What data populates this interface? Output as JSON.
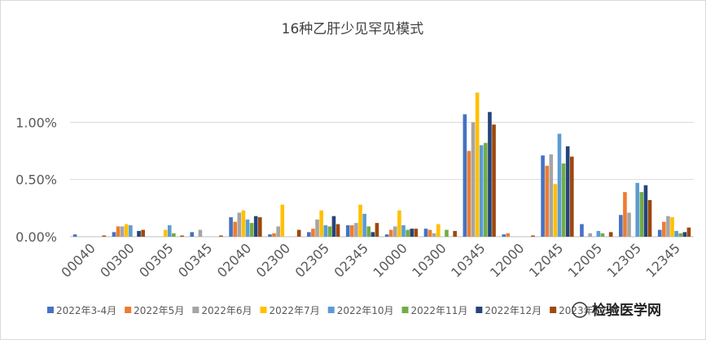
{
  "chart_data": {
    "type": "bar",
    "title": "16种乙肝少见罕见模式",
    "xlabel": "",
    "ylabel": "",
    "ylim": [
      0,
      1.5
    ],
    "y_ticks": [
      {
        "value": 0,
        "label": "0.00%"
      },
      {
        "value": 0.5,
        "label": "0.50%"
      },
      {
        "value": 1.0,
        "label": "1.00%"
      }
    ],
    "grid": true,
    "legend_position": "bottom",
    "categories": [
      "00040",
      "00300",
      "00305",
      "00345",
      "02040",
      "02300",
      "02305",
      "02345",
      "10000",
      "10300",
      "10345",
      "12000",
      "12045",
      "12005",
      "12305",
      "12345"
    ],
    "series": [
      {
        "name": "2022年3-4月",
        "color": "#4472C4",
        "values": [
          0.02,
          0.04,
          0.0,
          0.04,
          0.17,
          0.02,
          0.04,
          0.1,
          0.02,
          0.07,
          1.07,
          0.02,
          0.71,
          0.11,
          0.19,
          0.06
        ]
      },
      {
        "name": "2022年5月",
        "color": "#ED7D31",
        "values": [
          0.0,
          0.09,
          0.0,
          0.0,
          0.13,
          0.03,
          0.07,
          0.1,
          0.06,
          0.06,
          0.75,
          0.03,
          0.62,
          0.0,
          0.39,
          0.13
        ]
      },
      {
        "name": "2022年6月",
        "color": "#A5A5A5",
        "values": [
          0.0,
          0.09,
          0.0,
          0.06,
          0.21,
          0.09,
          0.15,
          0.12,
          0.09,
          0.03,
          1.0,
          0.0,
          0.72,
          0.03,
          0.21,
          0.18
        ]
      },
      {
        "name": "2022年7月",
        "color": "#FFC000",
        "values": [
          0.0,
          0.11,
          0.06,
          0.0,
          0.23,
          0.28,
          0.23,
          0.28,
          0.23,
          0.11,
          1.26,
          0.0,
          0.46,
          0.0,
          0.0,
          0.17
        ]
      },
      {
        "name": "2022年10月",
        "color": "#5B9BD5",
        "values": [
          0.0,
          0.1,
          0.1,
          0.0,
          0.15,
          0.0,
          0.1,
          0.2,
          0.1,
          0.0,
          0.8,
          0.0,
          0.9,
          0.05,
          0.47,
          0.05
        ]
      },
      {
        "name": "2022年11月",
        "color": "#70AD47",
        "values": [
          0.0,
          0.0,
          0.03,
          0.0,
          0.12,
          0.0,
          0.09,
          0.09,
          0.06,
          0.06,
          0.82,
          0.0,
          0.64,
          0.03,
          0.39,
          0.03
        ]
      },
      {
        "name": "2022年12月",
        "color": "#264478",
        "values": [
          0.0,
          0.05,
          0.0,
          0.0,
          0.18,
          0.0,
          0.18,
          0.04,
          0.07,
          0.0,
          1.09,
          0.0,
          0.79,
          0.0,
          0.45,
          0.04
        ]
      },
      {
        "name": "2023年1-3月",
        "color": "#9E480E",
        "values": [
          0.01,
          0.06,
          0.01,
          0.01,
          0.17,
          0.06,
          0.11,
          0.12,
          0.07,
          0.05,
          0.98,
          0.01,
          0.7,
          0.04,
          0.32,
          0.08
        ]
      }
    ]
  },
  "watermark": {
    "text": "检验医学网"
  }
}
